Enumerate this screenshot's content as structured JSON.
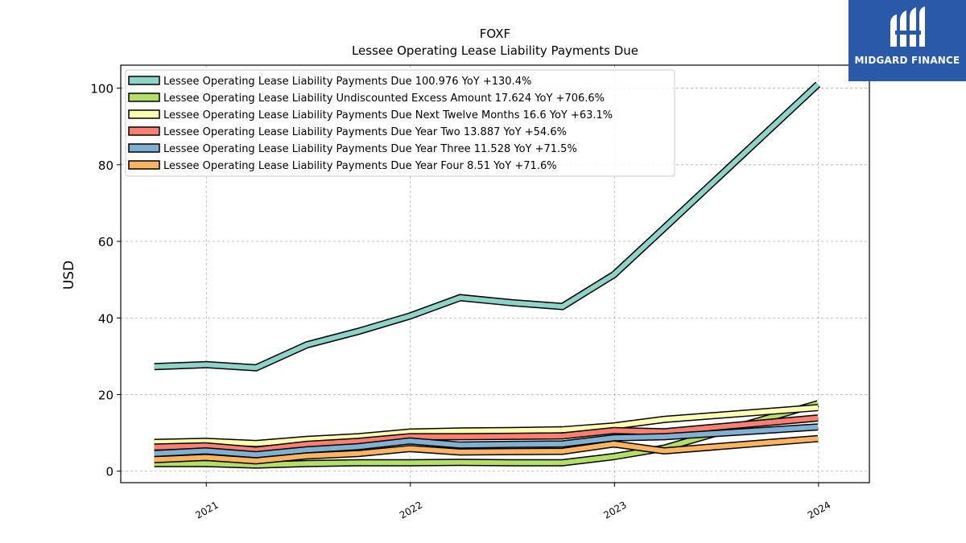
{
  "brand": {
    "name": "MIDGARD FINANCE",
    "accent": "#2a5aa7"
  },
  "chart_data": {
    "type": "line",
    "title": "FOXF",
    "subtitle": "Lessee Operating Lease Liability Payments Due",
    "xlabel": "",
    "ylabel": "USD",
    "xlim": [
      "2020-08-01",
      "2024-04-01"
    ],
    "ylim": [
      -3,
      106
    ],
    "x_ticks": [
      "2021",
      "2022",
      "2023",
      "2024"
    ],
    "y_ticks": [
      0,
      20,
      40,
      60,
      80,
      100
    ],
    "grid": true,
    "legend_position": "top-left",
    "x": [
      "2020-09-30",
      "2020-12-31",
      "2021-03-31",
      "2021-06-30",
      "2021-09-30",
      "2021-12-31",
      "2022-03-31",
      "2022-06-30",
      "2022-09-30",
      "2022-12-31",
      "2023-03-31",
      "2023-12-31"
    ],
    "series": [
      {
        "name": "Lessee Operating Lease Liability Payments Due",
        "legend_label": "Lessee Operating Lease Liability Payments Due  100.976 YoY +130.4%",
        "color": "#8dd3c7",
        "values": [
          27.3,
          27.8,
          27.0,
          33.0,
          36.5,
          40.5,
          45.3,
          44.0,
          43.0,
          51.3,
          63.5,
          100.976
        ]
      },
      {
        "name": "Lessee Operating Lease Liability Undiscounted Excess Amount",
        "legend_label": "Lessee Operating Lease Liability Undiscounted Excess Amount  17.624 YoY +706.6%",
        "color": "#b3de69",
        "values": [
          2.0,
          2.0,
          1.6,
          2.0,
          2.2,
          2.2,
          2.3,
          2.2,
          2.2,
          3.8,
          6.0,
          17.624
        ]
      },
      {
        "name": "Lessee Operating Lease Liability Payments Due Next Twelve Months",
        "legend_label": "Lessee Operating Lease Liability Payments Due Next Twelve Months  16.6 YoY +63.1%",
        "color": "#ffffb3",
        "values": [
          7.5,
          7.8,
          7.2,
          8.3,
          9.0,
          10.2,
          10.5,
          10.6,
          10.8,
          11.8,
          13.5,
          16.6
        ]
      },
      {
        "name": "Lessee Operating Lease Liability Payments Due Year Two",
        "legend_label": "Lessee Operating Lease Liability Payments Due Year Two  13.887 YoY +54.6%",
        "color": "#fb8072",
        "values": [
          6.3,
          6.6,
          5.5,
          7.0,
          7.8,
          9.0,
          9.0,
          9.1,
          9.2,
          10.6,
          10.3,
          13.887
        ]
      },
      {
        "name": "Lessee Operating Lease Liability Payments Due Year Three",
        "legend_label": "Lessee Operating Lease Liability Payments Due Year Three  11.528 YoY +71.5%",
        "color": "#80b1d3",
        "values": [
          4.6,
          5.3,
          4.3,
          5.6,
          6.4,
          7.9,
          6.8,
          7.0,
          7.1,
          8.7,
          9.0,
          11.528
        ]
      },
      {
        "name": "Lessee Operating Lease Liability Payments Due Year Four",
        "legend_label": "Lessee Operating Lease Liability Payments Due Year Four  8.51 YoY +71.6%",
        "color": "#fdb462",
        "values": [
          3.0,
          3.6,
          2.7,
          4.0,
          4.6,
          5.9,
          5.0,
          5.1,
          5.2,
          7.1,
          5.3,
          8.51
        ]
      }
    ]
  }
}
